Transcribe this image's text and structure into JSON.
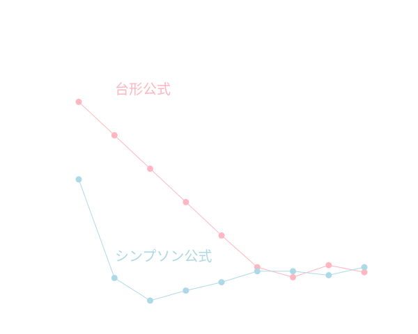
{
  "chart_data": {
    "type": "line",
    "x": [
      1,
      2,
      3,
      4,
      5,
      6,
      7,
      8,
      9
    ],
    "ylim": [
      0,
      1
    ],
    "grid": false,
    "series": [
      {
        "name": "台形公式",
        "color": "#ffb6c1",
        "values": [
          0.695,
          0.595,
          0.495,
          0.395,
          0.295,
          0.2,
          0.17,
          0.206,
          0.185
        ]
      },
      {
        "name": "シンプソン公式",
        "color": "#add8e6",
        "values": [
          0.463,
          0.168,
          0.1,
          0.13,
          0.155,
          0.188,
          0.188,
          0.176,
          0.2
        ]
      }
    ]
  }
}
